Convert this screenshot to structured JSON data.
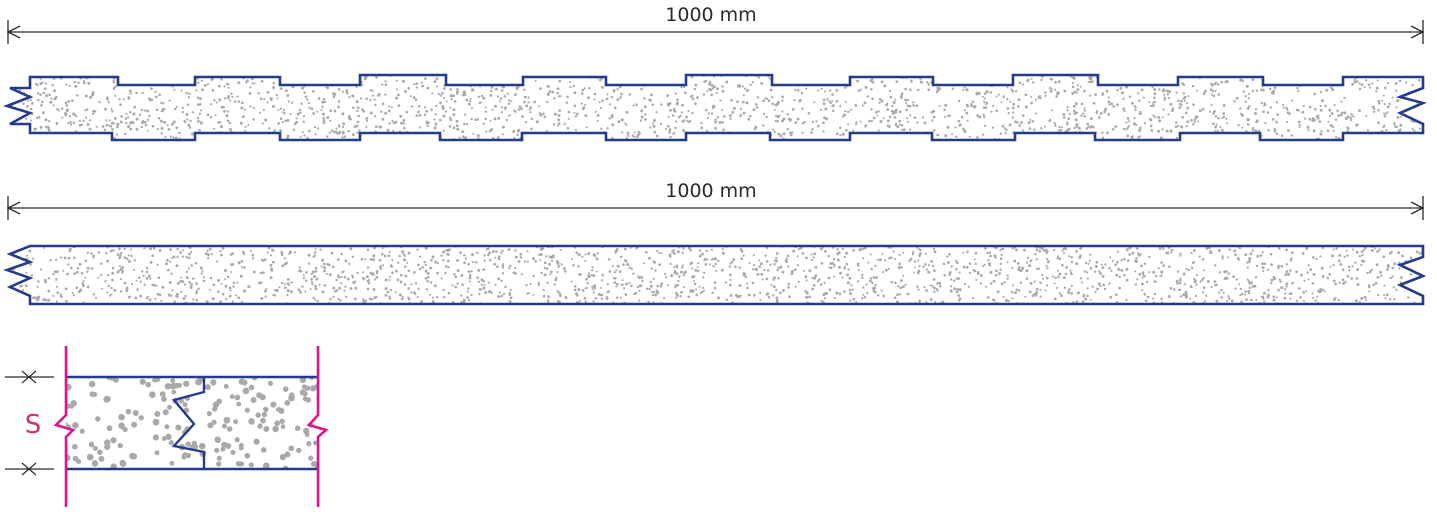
{
  "dimensions": {
    "top_label": "1000 mm",
    "middle_label": "1000 mm"
  },
  "detail": {
    "thickness_label": "S"
  },
  "colors": {
    "outline": "#243a8c",
    "fill_dots": "#a9a9a9",
    "accent": "#e0148a",
    "dim_line": "#2a2a2a"
  }
}
